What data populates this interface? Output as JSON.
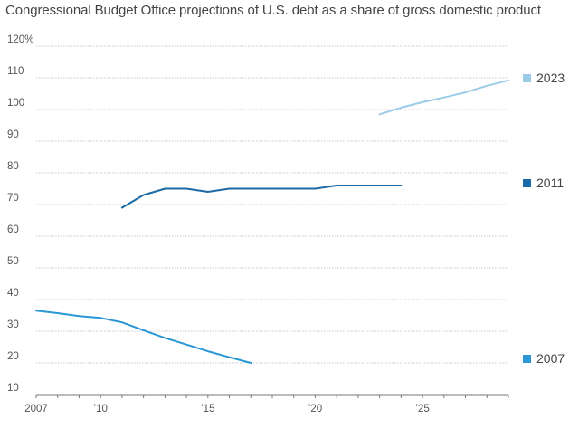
{
  "chart_data": {
    "type": "line",
    "title": "Congressional Budget Office projections of U.S. debt as a share of gross domestic product",
    "xlabel": "",
    "ylabel": "",
    "xlim": [
      2007,
      2029
    ],
    "ylim": [
      10,
      120
    ],
    "y_ticks": [
      {
        "value": 120,
        "label": "120%"
      },
      {
        "value": 110,
        "label": "110"
      },
      {
        "value": 100,
        "label": "100"
      },
      {
        "value": 90,
        "label": "90"
      },
      {
        "value": 80,
        "label": "80"
      },
      {
        "value": 70,
        "label": "70"
      },
      {
        "value": 60,
        "label": "60"
      },
      {
        "value": 50,
        "label": "50"
      },
      {
        "value": 40,
        "label": "40"
      },
      {
        "value": 30,
        "label": "30"
      },
      {
        "value": 20,
        "label": "20"
      },
      {
        "value": 10,
        "label": "10"
      }
    ],
    "x_ticks": [
      {
        "value": 2007,
        "label": "2007"
      },
      {
        "value": 2010,
        "label": "’10"
      },
      {
        "value": 2015,
        "label": "’15"
      },
      {
        "value": 2020,
        "label": "’20"
      },
      {
        "value": 2025,
        "label": "’25"
      }
    ],
    "grid": true,
    "legend": "right, next to each line",
    "series": [
      {
        "name": "2023",
        "color": "#9ccbea",
        "x": [
          2023,
          2024,
          2025,
          2026,
          2027,
          2028,
          2029
        ],
        "y": [
          98.5,
          100.6,
          102.3,
          103.8,
          105.4,
          107.5,
          109.2
        ]
      },
      {
        "name": "2011",
        "color": "#1b6aa5",
        "x": [
          2011,
          2012,
          2013,
          2014,
          2015,
          2016,
          2017,
          2018,
          2019,
          2020,
          2021,
          2022,
          2023,
          2024
        ],
        "y": [
          69,
          73,
          75,
          75,
          74,
          75,
          75,
          75,
          75,
          75,
          76,
          76,
          76,
          76
        ]
      },
      {
        "name": "2007",
        "color": "#2a97d6",
        "x": [
          2007,
          2008,
          2009,
          2010,
          2011,
          2012,
          2013,
          2014,
          2015,
          2016,
          2017
        ],
        "y": [
          36.5,
          35.7,
          34.8,
          34.2,
          32.8,
          30.3,
          27.9,
          25.8,
          23.7,
          21.8,
          20.0
        ]
      }
    ]
  }
}
